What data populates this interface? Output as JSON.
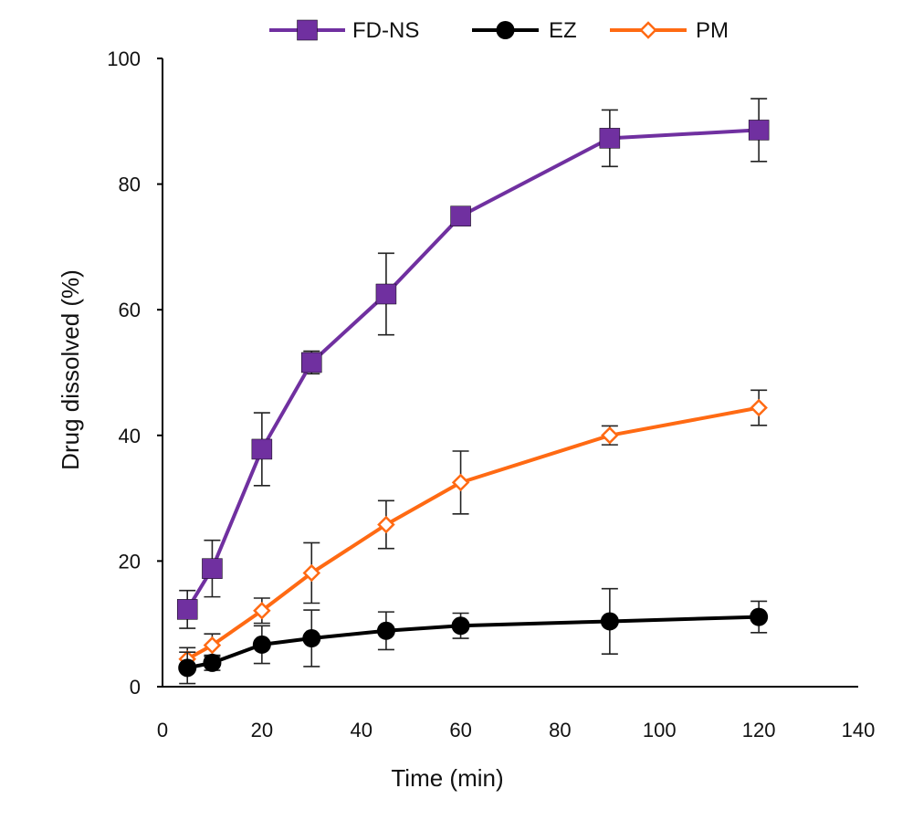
{
  "chart_data": {
    "type": "line",
    "title": "",
    "xlabel": "Time (min)",
    "ylabel": "Drug dissolved (%)",
    "xlim": [
      0,
      140
    ],
    "ylim": [
      0,
      100
    ],
    "x_ticks": [
      "0",
      "20",
      "40",
      "60",
      "80",
      "100",
      "120",
      "140"
    ],
    "y_ticks": [
      "0",
      "20",
      "40",
      "60",
      "80",
      "100"
    ],
    "grid": false,
    "legend_position": "top",
    "series": [
      {
        "name": "FD-NS",
        "color": "#7030a0",
        "marker": "square",
        "x": [
          5,
          10,
          20,
          30,
          45,
          60,
          90,
          120
        ],
        "y": [
          12.3,
          18.8,
          37.8,
          51.6,
          62.5,
          74.9,
          87.3,
          88.6
        ],
        "error": [
          3.0,
          4.5,
          5.8,
          1.8,
          6.5,
          1.0,
          4.5,
          5.0
        ]
      },
      {
        "name": "EZ",
        "color": "#000000",
        "marker": "circle",
        "x": [
          5,
          10,
          20,
          30,
          45,
          60,
          90,
          120
        ],
        "y": [
          3.0,
          3.8,
          6.7,
          7.7,
          8.9,
          9.7,
          10.4,
          11.1
        ],
        "error": [
          2.5,
          1.2,
          3.0,
          4.5,
          3.0,
          2.0,
          5.2,
          2.5
        ]
      },
      {
        "name": "PM",
        "color": "#ff6a13",
        "marker": "diamond",
        "x": [
          5,
          10,
          20,
          30,
          45,
          60,
          90,
          120
        ],
        "y": [
          4.4,
          6.6,
          12.1,
          18.1,
          25.8,
          32.5,
          40.0,
          44.4
        ],
        "error": [
          1.8,
          1.8,
          2.0,
          4.8,
          3.8,
          5.0,
          1.5,
          2.8
        ]
      }
    ]
  }
}
